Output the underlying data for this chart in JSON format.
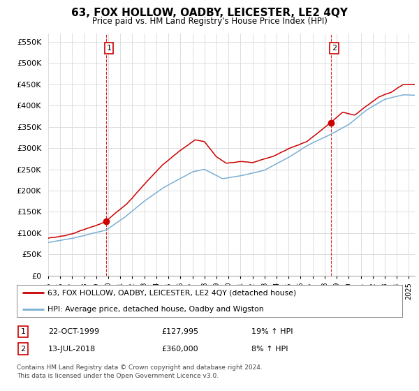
{
  "title": "63, FOX HOLLOW, OADBY, LEICESTER, LE2 4QY",
  "subtitle": "Price paid vs. HM Land Registry's House Price Index (HPI)",
  "sale1_year": 1999.8,
  "sale1_price": 127995,
  "sale2_year": 2018.53,
  "sale2_price": 360000,
  "legend_red_label": "63, FOX HOLLOW, OADBY, LEICESTER, LE2 4QY (detached house)",
  "legend_blue_label": "HPI: Average price, detached house, Oadby and Wigston",
  "table_row1": [
    "1",
    "22-OCT-1999",
    "£127,995",
    "19% ↑ HPI"
  ],
  "table_row2": [
    "2",
    "13-JUL-2018",
    "£360,000",
    "8% ↑ HPI"
  ],
  "footer": "Contains HM Land Registry data © Crown copyright and database right 2024.\nThis data is licensed under the Open Government Licence v3.0.",
  "red_color": "#cc0000",
  "blue_color": "#7aafd4",
  "background_color": "#ffffff",
  "grid_color": "#dddddd",
  "yticks": [
    0,
    50000,
    100000,
    150000,
    200000,
    250000,
    300000,
    350000,
    400000,
    450000,
    500000,
    550000
  ],
  "ylim": [
    0,
    570000
  ]
}
